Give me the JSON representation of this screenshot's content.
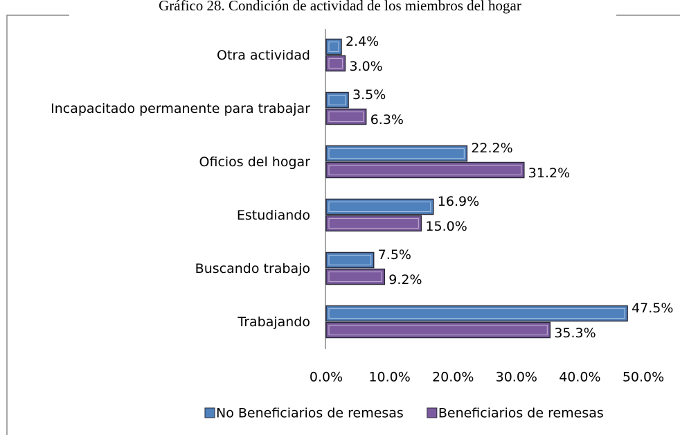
{
  "chart_data": {
    "type": "hbar",
    "title": "Gráfico 28. Condición de actividad de los miembros del hogar",
    "categories": [
      "Otra actividad",
      "Incapacitado permanente para trabajar",
      "Oficios del hogar",
      "Estudiando",
      "Buscando trabajo",
      "Trabajando"
    ],
    "series": [
      {
        "name": "No Beneficiarios de remesas",
        "color": "#4f81bd",
        "values": [
          2.4,
          3.5,
          22.2,
          16.9,
          7.5,
          47.5
        ],
        "value_labels": [
          "2.4%",
          "3.5%",
          "22.2%",
          "16.9%",
          "7.5%",
          "47.5%"
        ]
      },
      {
        "name": "Beneficiarios de remesas",
        "color": "#7b5a9e",
        "values": [
          3.0,
          6.3,
          31.2,
          15.0,
          9.2,
          35.3
        ],
        "value_labels": [
          "3.0%",
          "6.3%",
          "31.2%",
          "15.0%",
          "9.2%",
          "35.3%"
        ]
      }
    ],
    "xlim": [
      0,
      50
    ],
    "xticks": [
      {
        "value": 0,
        "label": "0.0%"
      },
      {
        "value": 10,
        "label": "10.0%"
      },
      {
        "value": 20,
        "label": "20.0%"
      },
      {
        "value": 30,
        "label": "30.0%"
      },
      {
        "value": 40,
        "label": "40.0%"
      },
      {
        "value": 50,
        "label": "50.0%"
      }
    ],
    "legend": "bottom"
  }
}
